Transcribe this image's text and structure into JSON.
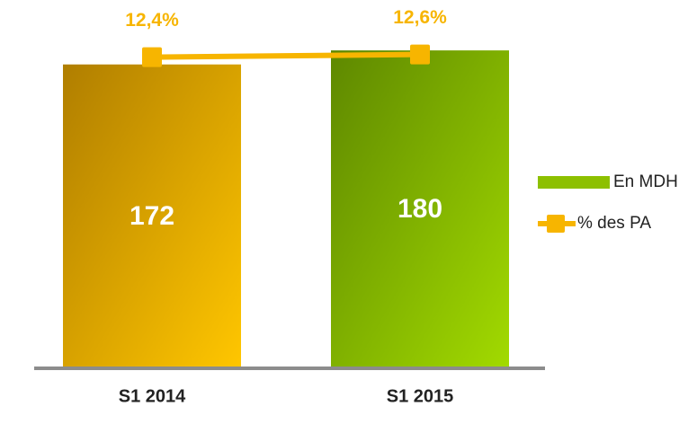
{
  "chart_data": {
    "type": "bar",
    "categories": [
      "S1 2014",
      "S1 2015"
    ],
    "ylim": [
      0,
      200
    ],
    "y2lim": [
      -10.5,
      15.5
    ],
    "legend": "right",
    "series": [
      {
        "name": "En MDH",
        "type": "bar",
        "color": "#8dc000",
        "values": [
          172,
          180
        ],
        "colors": [
          [
            "#b07e00",
            "#ffc600"
          ],
          [
            "#5e8800",
            "#a2da00"
          ]
        ]
      },
      {
        "name": "% des PA",
        "type": "line",
        "axis": "y2",
        "color": "#f7b500",
        "values": [
          12.4,
          12.6
        ],
        "value_labels": [
          "12,4%",
          "12,6%"
        ]
      }
    ]
  }
}
